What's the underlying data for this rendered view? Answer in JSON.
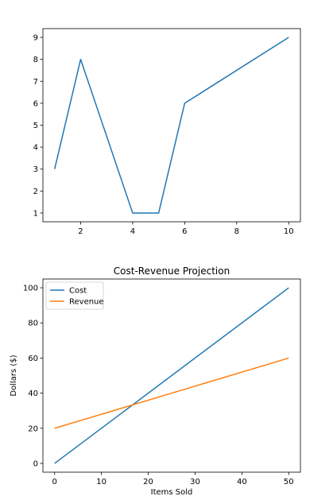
{
  "chart_data": [
    {
      "type": "line",
      "title": "",
      "xlabel": "",
      "ylabel": "",
      "xlim": [
        0.55,
        10.45
      ],
      "ylim": [
        0.6,
        9.4
      ],
      "xticks": [
        2,
        4,
        6,
        8,
        10
      ],
      "yticks": [
        1,
        2,
        3,
        4,
        5,
        6,
        7,
        8,
        9
      ],
      "series": [
        {
          "color": "#1f77b4",
          "x": [
            1,
            2,
            4,
            5,
            6,
            10
          ],
          "y": [
            3,
            8,
            1,
            1,
            6,
            9
          ]
        }
      ],
      "grid": false
    },
    {
      "type": "line",
      "title": "Cost-Revenue Projection",
      "xlabel": "Items Sold",
      "ylabel": "Dollars ($)",
      "xlim": [
        -2.5,
        52.5
      ],
      "ylim": [
        -5,
        105
      ],
      "xticks": [
        0,
        10,
        20,
        30,
        40,
        50
      ],
      "yticks": [
        0,
        20,
        40,
        60,
        80,
        100
      ],
      "legend": "top-left",
      "series": [
        {
          "name": "Cost",
          "color": "#1f77b4",
          "x": [
            0,
            50
          ],
          "y": [
            0,
            100
          ]
        },
        {
          "name": "Revenue",
          "color": "#ff7f0e",
          "x": [
            0,
            50
          ],
          "y": [
            20,
            60
          ]
        }
      ],
      "grid": false
    }
  ]
}
